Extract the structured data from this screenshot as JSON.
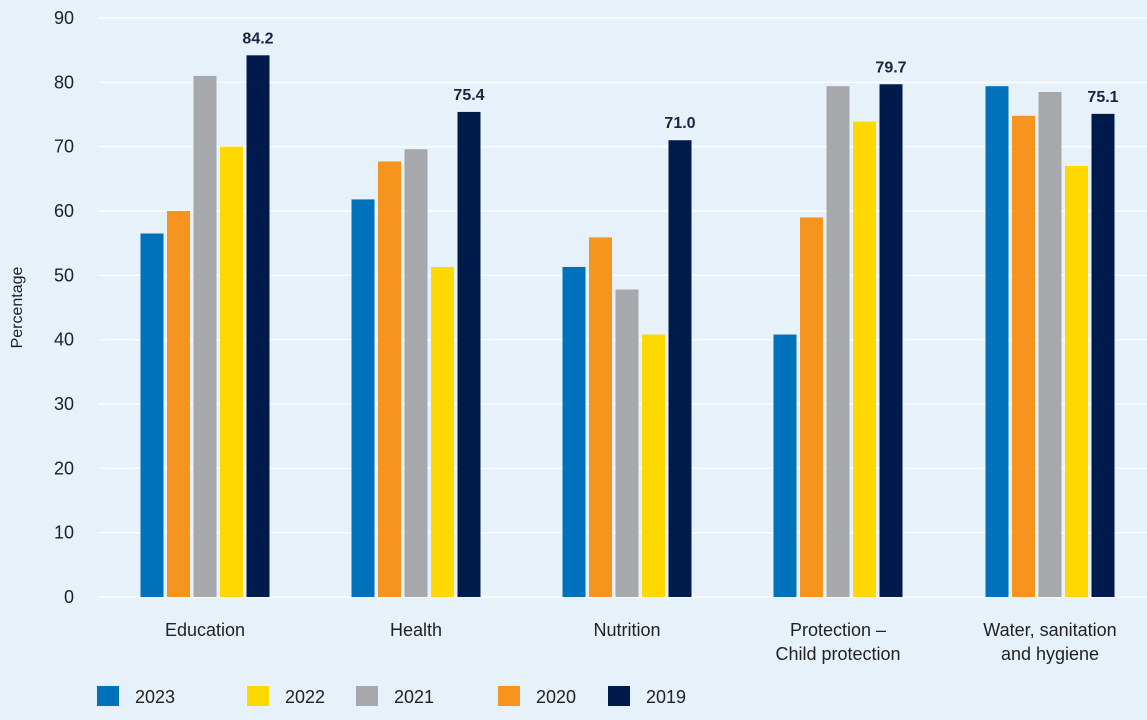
{
  "chart_data": {
    "type": "bar",
    "title": "",
    "xlabel": "",
    "ylabel": "Percentage",
    "ylim": [
      0,
      90
    ],
    "yticks": [
      0,
      10,
      20,
      30,
      40,
      50,
      60,
      70,
      80,
      90
    ],
    "grid": true,
    "legend_position": "bottom",
    "categories": [
      [
        "Education"
      ],
      [
        "Health"
      ],
      [
        "Nutrition"
      ],
      [
        "Protection –",
        "Child protection"
      ],
      [
        "Water, sanitation",
        "and hygiene"
      ]
    ],
    "series": [
      {
        "name": "2023",
        "color": "#0072bc",
        "values": [
          56.5,
          61.8,
          51.3,
          40.8,
          79.4
        ]
      },
      {
        "name": "2020",
        "color": "#f7941d",
        "values": [
          60.0,
          67.7,
          55.9,
          59.0,
          74.8
        ]
      },
      {
        "name": "2021",
        "color": "#a6a8ab",
        "values": [
          81.0,
          69.6,
          47.8,
          79.4,
          78.5
        ]
      },
      {
        "name": "2022",
        "color": "#ffd800",
        "values": [
          70.0,
          51.3,
          40.8,
          73.9,
          67.0
        ]
      },
      {
        "name": "2019",
        "color": "#001a4b",
        "values": [
          84.2,
          75.4,
          71.0,
          79.7,
          75.1
        ]
      }
    ],
    "data_labels": {
      "series": "2019",
      "labels": [
        "84.2",
        "75.4",
        "71.0",
        "79.7",
        "75.1"
      ]
    },
    "legend_order": [
      "2023",
      "2022",
      "2021",
      "2020",
      "2019"
    ]
  }
}
